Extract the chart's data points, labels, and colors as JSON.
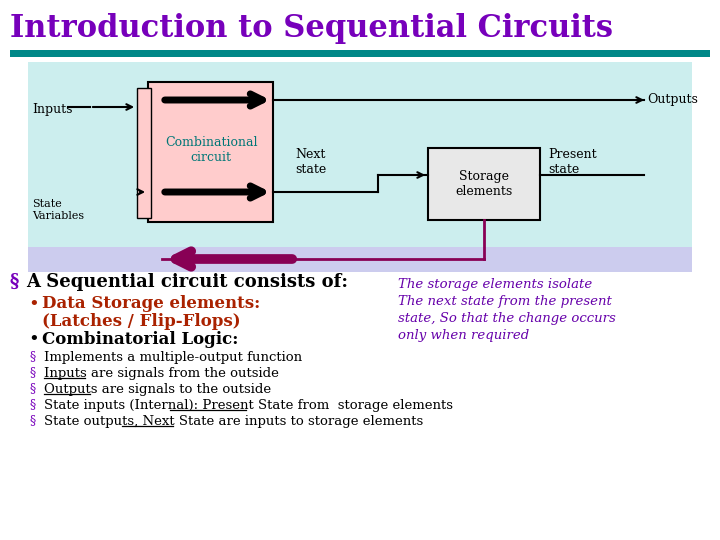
{
  "title": "Introduction to Sequential Circuits",
  "title_color": "#7700bb",
  "title_fontsize": 22,
  "bg_color": "#ffffff",
  "teal_bar_color": "#008888",
  "diagram_bg": "#cceeee",
  "feedback_bg": "#ccccee",
  "comb_box_facecolor": "#ffcccc",
  "comb_box_edgecolor": "#000000",
  "storage_box_facecolor": "#e8e8e8",
  "storage_box_edgecolor": "#000000",
  "sv_box_facecolor": "#ffcccc",
  "sv_box_edgecolor": "#000000",
  "section_title": "A Sequential circuit consists of:",
  "section_title_color": "#000000",
  "bullet1_text": "Data Storage elements:",
  "bullet1b_text": "(Latches / Flip-Flops)",
  "bullet1_color": "#aa2200",
  "bullet2_text": "Combinatorial Logic:",
  "bullet2_color": "#000000",
  "sub_bullets": [
    "Implements a multiple-output function",
    "Inputs are signals from the outside",
    "Outputs are signals to the outside",
    "State inputs (Internal): Present State from  storage elements",
    "State outputs, Next State are inputs to storage elements"
  ],
  "right_text_color": "#6600aa",
  "right_text": [
    "The storage elements isolate",
    "The next state from the present",
    "state, So that the change occurs",
    "only when required"
  ],
  "feedback_arrow_color": "#880055",
  "comb_text_color": "#007777",
  "arrow_color": "#000000"
}
